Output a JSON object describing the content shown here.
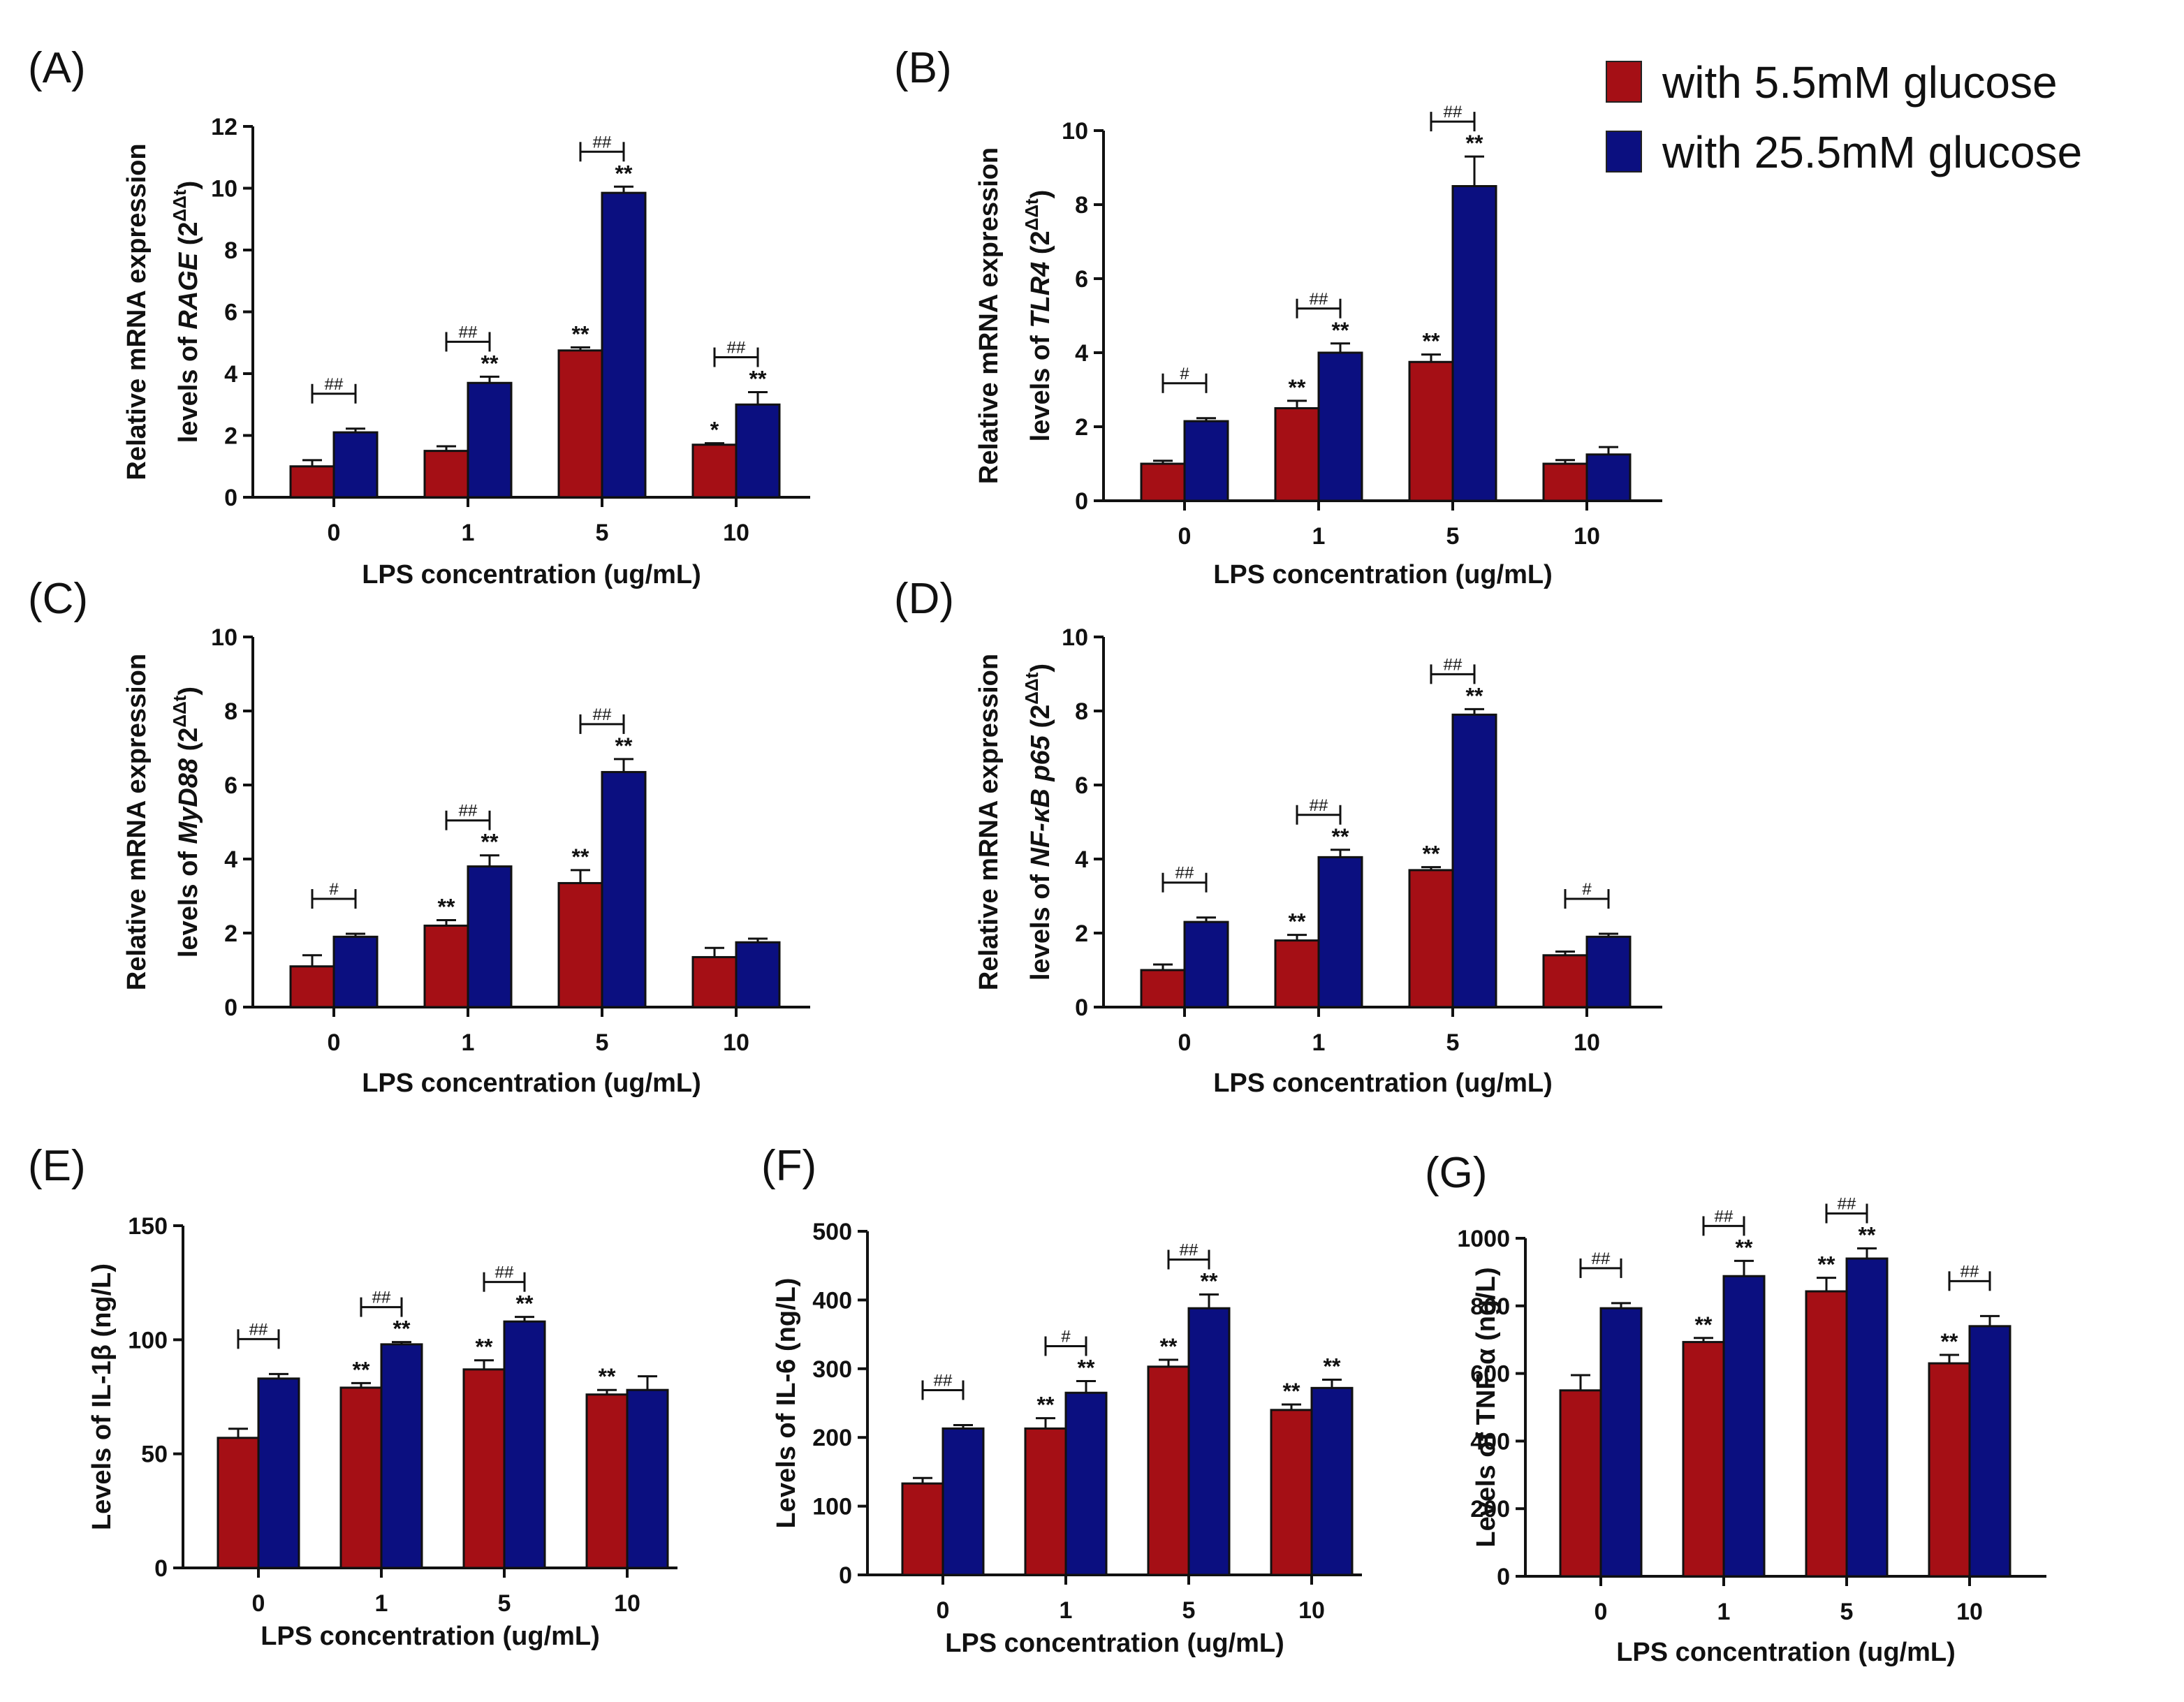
{
  "legend": {
    "items": [
      {
        "label": "with 5.5mM glucose",
        "color": "#A50F15"
      },
      {
        "label": "with 25.5mM glucose",
        "color": "#0B0F80"
      }
    ]
  },
  "chart_data": [
    {
      "panel": "(A)",
      "type": "bar",
      "categories": [
        "0",
        "1",
        "5",
        "10"
      ],
      "ylim": [
        0,
        12
      ],
      "yticks": [
        0,
        2,
        4,
        6,
        8,
        10,
        12
      ],
      "xlabel": "LPS concentration (ug/mL)",
      "ylabel": {
        "line1": "Relative mRNA expression",
        "pre": "levels of ",
        "gene": "RAGE",
        "post": " (2",
        "sup": "ΔΔt",
        "close": ")"
      },
      "series": [
        {
          "name": "with 5.5mM glucose",
          "values": [
            1.0,
            1.5,
            4.75,
            1.7
          ],
          "errors": [
            0.2,
            0.15,
            0.1,
            0.05
          ],
          "stars": [
            "",
            "",
            "**",
            "*"
          ]
        },
        {
          "name": "with 25.5mM glucose",
          "values": [
            2.1,
            3.7,
            9.85,
            3.0
          ],
          "errors": [
            0.12,
            0.2,
            0.2,
            0.4
          ],
          "stars": [
            "",
            "**",
            "**",
            "**"
          ]
        }
      ],
      "brackets": [
        "##",
        "##",
        "##",
        "##"
      ]
    },
    {
      "panel": "(B)",
      "type": "bar",
      "categories": [
        "0",
        "1",
        "5",
        "10"
      ],
      "ylim": [
        0,
        10
      ],
      "yticks": [
        0,
        2,
        4,
        6,
        8,
        10
      ],
      "xlabel": "LPS concentration (ug/mL)",
      "ylabel": {
        "line1": "Relative mRNA expression",
        "pre": "levels of ",
        "gene": "TLR4",
        "post": " (2",
        "sup": "ΔΔt",
        "close": ")"
      },
      "series": [
        {
          "name": "with 5.5mM glucose",
          "values": [
            1.0,
            2.5,
            3.75,
            1.0
          ],
          "errors": [
            0.08,
            0.2,
            0.2,
            0.1
          ],
          "stars": [
            "",
            "**",
            "**",
            ""
          ]
        },
        {
          "name": "with 25.5mM glucose",
          "values": [
            2.15,
            4.0,
            8.5,
            1.25
          ],
          "errors": [
            0.08,
            0.25,
            0.8,
            0.2
          ],
          "stars": [
            "",
            "**",
            "**",
            ""
          ]
        }
      ],
      "brackets": [
        "#",
        "##",
        "##",
        ""
      ]
    },
    {
      "panel": "(C)",
      "type": "bar",
      "categories": [
        "0",
        "1",
        "5",
        "10"
      ],
      "ylim": [
        0,
        10
      ],
      "yticks": [
        0,
        2,
        4,
        6,
        8,
        10
      ],
      "xlabel": "LPS concentration (ug/mL)",
      "ylabel": {
        "line1": "Relative mRNA expression",
        "pre": "levels of ",
        "gene": "MyD88",
        "post": " (2",
        "sup": "ΔΔt",
        "close": ")"
      },
      "series": [
        {
          "name": "with 5.5mM glucose",
          "values": [
            1.1,
            2.2,
            3.35,
            1.35
          ],
          "errors": [
            0.3,
            0.15,
            0.35,
            0.25
          ],
          "stars": [
            "",
            "**",
            "**",
            ""
          ]
        },
        {
          "name": "with 25.5mM glucose",
          "values": [
            1.9,
            3.8,
            6.35,
            1.75
          ],
          "errors": [
            0.08,
            0.3,
            0.35,
            0.1
          ],
          "stars": [
            "",
            "**",
            "**",
            ""
          ]
        }
      ],
      "brackets": [
        "#",
        "##",
        "##",
        ""
      ]
    },
    {
      "panel": "(D)",
      "type": "bar",
      "categories": [
        "0",
        "1",
        "5",
        "10"
      ],
      "ylim": [
        0,
        10
      ],
      "yticks": [
        0,
        2,
        4,
        6,
        8,
        10
      ],
      "xlabel": "LPS concentration (ug/mL)",
      "ylabel": {
        "line1": "Relative mRNA expression",
        "pre": "levels of ",
        "gene": "NF-κB p65",
        "post": " (2",
        "sup": "ΔΔt",
        "close": ")"
      },
      "series": [
        {
          "name": "with 5.5mM glucose",
          "values": [
            1.0,
            1.8,
            3.7,
            1.4
          ],
          "errors": [
            0.15,
            0.15,
            0.08,
            0.1
          ],
          "stars": [
            "",
            "**",
            "**",
            ""
          ]
        },
        {
          "name": "with 25.5mM glucose",
          "values": [
            2.3,
            4.05,
            7.9,
            1.9
          ],
          "errors": [
            0.12,
            0.2,
            0.15,
            0.08
          ],
          "stars": [
            "",
            "**",
            "**",
            ""
          ]
        }
      ],
      "brackets": [
        "##",
        "##",
        "##",
        "#"
      ]
    },
    {
      "panel": "(E)",
      "type": "bar",
      "categories": [
        "0",
        "1",
        "5",
        "10"
      ],
      "ylim": [
        0,
        150
      ],
      "yticks": [
        0,
        50,
        100,
        150
      ],
      "xlabel": "LPS concentration (ug/mL)",
      "ylabel": {
        "line1": "",
        "pre": "Levels of IL-1β (ng/L)",
        "gene": "",
        "post": "",
        "sup": "",
        "close": ""
      },
      "series": [
        {
          "name": "with 5.5mM glucose",
          "values": [
            57,
            79,
            87,
            76
          ],
          "errors": [
            4,
            2,
            4,
            2
          ],
          "stars": [
            "",
            "**",
            "**",
            "**"
          ]
        },
        {
          "name": "with 25.5mM glucose",
          "values": [
            83,
            98,
            108,
            78
          ],
          "errors": [
            2,
            1,
            2,
            6
          ],
          "stars": [
            "",
            "**",
            "**",
            ""
          ]
        }
      ],
      "brackets": [
        "##",
        "##",
        "##",
        ""
      ]
    },
    {
      "panel": "(F)",
      "type": "bar",
      "categories": [
        "0",
        "1",
        "5",
        "10"
      ],
      "ylim": [
        0,
        500
      ],
      "yticks": [
        0,
        100,
        200,
        300,
        400,
        500
      ],
      "xlabel": "LPS concentration (ug/mL)",
      "ylabel": {
        "line1": "",
        "pre": "Levels of IL-6 (ng/L)",
        "gene": "",
        "post": "",
        "sup": "",
        "close": ""
      },
      "series": [
        {
          "name": "with 5.5mM glucose",
          "values": [
            133,
            213,
            303,
            240
          ],
          "errors": [
            8,
            15,
            10,
            8
          ],
          "stars": [
            "",
            "**",
            "**",
            "**"
          ]
        },
        {
          "name": "with 25.5mM glucose",
          "values": [
            213,
            265,
            388,
            272
          ],
          "errors": [
            5,
            17,
            20,
            12
          ],
          "stars": [
            "",
            "**",
            "**",
            "**"
          ]
        }
      ],
      "brackets": [
        "##",
        "#",
        "##",
        ""
      ]
    },
    {
      "panel": "(G)",
      "type": "bar",
      "categories": [
        "0",
        "1",
        "5",
        "10"
      ],
      "ylim": [
        0,
        1000
      ],
      "yticks": [
        0,
        200,
        400,
        600,
        800,
        1000
      ],
      "xlabel": "LPS concentration (ug/mL)",
      "ylabel": {
        "line1": "",
        "pre": "Levels of TNF-α (ng/L)",
        "gene": "",
        "post": "",
        "sup": "",
        "close": ""
      },
      "series": [
        {
          "name": "with 5.5mM glucose",
          "values": [
            550,
            693,
            843,
            630
          ],
          "errors": [
            45,
            12,
            40,
            25
          ],
          "stars": [
            "",
            "**",
            "**",
            "**"
          ]
        },
        {
          "name": "with 25.5mM glucose",
          "values": [
            793,
            888,
            940,
            740
          ],
          "errors": [
            15,
            45,
            30,
            30
          ],
          "stars": [
            "",
            "**",
            "**",
            ""
          ]
        }
      ],
      "brackets": [
        "##",
        "##",
        "##",
        "##"
      ]
    }
  ]
}
